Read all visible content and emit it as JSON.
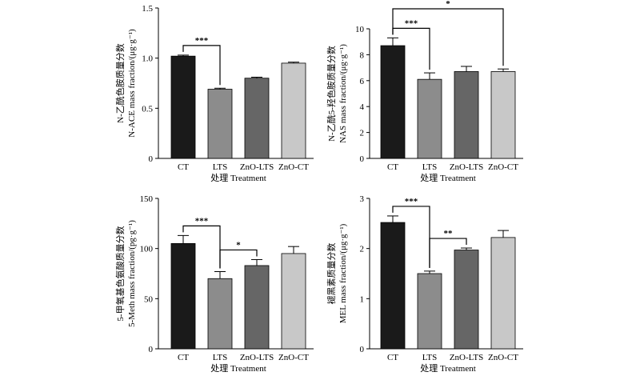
{
  "chart_data": [
    {
      "type": "bar",
      "categories": [
        "CT",
        "LTS",
        "ZnO-LTS",
        "ZnO-CT"
      ],
      "values": [
        1.02,
        0.69,
        0.8,
        0.95
      ],
      "errors": [
        0.01,
        0.01,
        0.01,
        0.01
      ],
      "colors": [
        "#1a1a1a",
        "#8c8c8c",
        "#666666",
        "#c8c8c8"
      ],
      "ylim": [
        0,
        1.5
      ],
      "yticks": [
        "0",
        "0.5",
        "1.0",
        "1.5"
      ],
      "ylabel_cn": "N-乙酰色胺质量分数",
      "ylabel_en": "N-ACE mass fraction/(μg·g⁻¹)",
      "xlabel": "处理 Treatment",
      "significance": [
        {
          "from": 0,
          "to": 1,
          "label": "***"
        }
      ]
    },
    {
      "type": "bar",
      "categories": [
        "CT",
        "LTS",
        "ZnO-LTS",
        "ZnO-CT"
      ],
      "values": [
        8.7,
        6.1,
        6.7,
        6.7
      ],
      "errors": [
        0.6,
        0.5,
        0.4,
        0.2
      ],
      "colors": [
        "#1a1a1a",
        "#8c8c8c",
        "#666666",
        "#c8c8c8"
      ],
      "ylim": [
        0,
        10
      ],
      "yticks": [
        "0",
        "2",
        "4",
        "6",
        "8",
        "10"
      ],
      "ylabel_cn": "N-乙酰5-羟色胺质量分数",
      "ylabel_en": "NAS mass fraction/(μg·g⁻¹)",
      "xlabel": "处理 Treatment",
      "significance": [
        {
          "from": 0,
          "to": 1,
          "label": "***"
        },
        {
          "from": 0,
          "to": 3,
          "label": "*"
        }
      ]
    },
    {
      "type": "bar",
      "categories": [
        "CT",
        "LTS",
        "ZnO-LTS",
        "ZnO-CT"
      ],
      "values": [
        105,
        70,
        83,
        95
      ],
      "errors": [
        8,
        7,
        6,
        7
      ],
      "colors": [
        "#1a1a1a",
        "#8c8c8c",
        "#666666",
        "#c8c8c8"
      ],
      "ylim": [
        0,
        150
      ],
      "yticks": [
        "0",
        "50",
        "100",
        "150"
      ],
      "ylabel_cn": "5-甲氧基色氨酸质量分数",
      "ylabel_en": "5-Meth mass fraction/(pg·g⁻¹)",
      "xlabel": "处理 Treatment",
      "significance": [
        {
          "from": 0,
          "to": 1,
          "label": "***"
        },
        {
          "from": 1,
          "to": 2,
          "label": "*"
        }
      ]
    },
    {
      "type": "bar",
      "categories": [
        "CT",
        "LTS",
        "ZnO-LTS",
        "ZnO-CT"
      ],
      "values": [
        2.52,
        1.5,
        1.97,
        2.22
      ],
      "errors": [
        0.13,
        0.05,
        0.04,
        0.14
      ],
      "colors": [
        "#1a1a1a",
        "#8c8c8c",
        "#666666",
        "#c8c8c8"
      ],
      "ylim": [
        0,
        3
      ],
      "yticks": [
        "0",
        "1",
        "2",
        "3"
      ],
      "ylabel_cn": "褪黑素质量分数",
      "ylabel_en": "MEL mass fraction/(μg·g⁻¹)",
      "xlabel": "处理 Treatment",
      "significance": [
        {
          "from": 0,
          "to": 1,
          "label": "***"
        },
        {
          "from": 1,
          "to": 2,
          "label": "**"
        }
      ]
    }
  ]
}
